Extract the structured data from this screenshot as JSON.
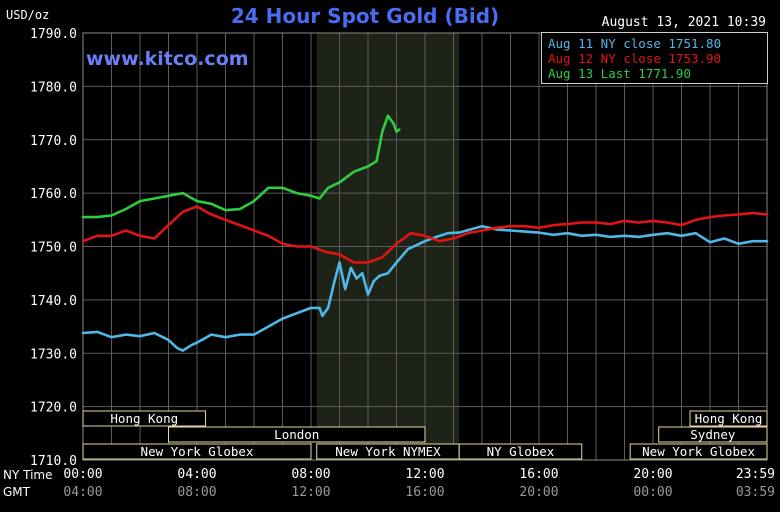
{
  "header": {
    "title": "24 Hour Spot Gold (Bid)",
    "website": "www.kitco.com",
    "datetime": "August 13, 2021 10:39",
    "unit": "USD/oz"
  },
  "colors": {
    "background": "#000000",
    "grid": "#5c5c5c",
    "title": "#4a6cf0",
    "site": "#6a7ff5",
    "highlight_band": "#1d2317",
    "session_border": "#e6d8a0",
    "aug11": "#4fb8e8",
    "aug12": "#e01414",
    "aug13": "#2ecc40"
  },
  "session_rows": {
    "ny_time": "NY Time",
    "gmt": "GMT"
  },
  "market_sessions": [
    {
      "label": "Hong Kong",
      "row": 0,
      "start": 0,
      "end": 4.3
    },
    {
      "label": "Hong Kong",
      "row": 0,
      "start": 21.3,
      "end": 24
    },
    {
      "label": "London",
      "row": 1,
      "start": 3,
      "end": 12
    },
    {
      "label": "Sydney",
      "row": 1,
      "start": 20.2,
      "end": 24
    },
    {
      "label": "New York Globex",
      "row": 2,
      "start": 0,
      "end": 8
    },
    {
      "label": "New York NYMEX",
      "row": 2,
      "start": 8.2,
      "end": 13.2
    },
    {
      "label": "NY Globex",
      "row": 2,
      "start": 13.2,
      "end": 17.5
    },
    {
      "label": "New York Globex",
      "row": 2,
      "start": 19.2,
      "end": 24
    }
  ],
  "chart_data": {
    "type": "line",
    "title": "24 Hour Spot Gold (Bid)",
    "ylabel": "USD/oz",
    "xlim": [
      0,
      24
    ],
    "ylim": [
      1710,
      1790
    ],
    "grid": true,
    "legend_position": "top-right",
    "highlight_range": [
      8.2,
      13.2
    ],
    "y_ticks": [
      "1710.0",
      "1720.0",
      "1730.0",
      "1740.0",
      "1750.0",
      "1760.0",
      "1770.0",
      "1780.0",
      "1790.0"
    ],
    "x_ticks_ny": [
      "00:00",
      "04:00",
      "08:00",
      "12:00",
      "16:00",
      "20:00",
      "23:59"
    ],
    "x_ticks_gmt": [
      "04:00",
      "08:00",
      "12:00",
      "16:00",
      "20:00",
      "00:00",
      "03:59"
    ],
    "legend": [
      "Aug 11 NY close 1751.80",
      "Aug 12 NY close 1753.90",
      "Aug 13 Last 1771.90"
    ],
    "series": [
      {
        "name": "Aug 11",
        "x": [
          0,
          0.5,
          1,
          1.5,
          2,
          2.5,
          3,
          3.3,
          3.5,
          3.8,
          4,
          4.5,
          5,
          5.5,
          6,
          6.5,
          7,
          7.5,
          8,
          8.3,
          8.4,
          8.6,
          8.8,
          9,
          9.2,
          9.4,
          9.6,
          9.8,
          10,
          10.2,
          10.4,
          10.7,
          11,
          11.4,
          11.8,
          12,
          12.4,
          12.8,
          13.2,
          13.6,
          14,
          14.5,
          15,
          15.5,
          16,
          16.5,
          17,
          17.5,
          18,
          18.5,
          19,
          19.5,
          20,
          20.5,
          21,
          21.5,
          22,
          22.5,
          23,
          23.5,
          24
        ],
        "y": [
          1733.8,
          1734,
          1733,
          1733.5,
          1733.2,
          1733.8,
          1732.5,
          1731,
          1730.5,
          1731.5,
          1732,
          1733.5,
          1733,
          1733.5,
          1733.5,
          1735,
          1736.5,
          1737.5,
          1738.5,
          1738.5,
          1737,
          1738.5,
          1743,
          1747,
          1742,
          1746,
          1744,
          1745,
          1741,
          1743.5,
          1744.5,
          1745,
          1747,
          1749.5,
          1750.5,
          1751,
          1751.8,
          1752.5,
          1752.6,
          1753.2,
          1753.8,
          1753.2,
          1753,
          1752.8,
          1752.6,
          1752.2,
          1752.5,
          1752,
          1752.2,
          1751.8,
          1752,
          1751.8,
          1752.2,
          1752.5,
          1752,
          1752.5,
          1750.8,
          1751.5,
          1750.5,
          1751,
          1751
        ]
      },
      {
        "name": "Aug 12",
        "x": [
          0,
          0.5,
          1,
          1.5,
          2,
          2.5,
          3,
          3.5,
          4,
          4.5,
          5,
          5.5,
          6,
          6.5,
          7,
          7.5,
          8,
          8.5,
          9,
          9.5,
          10,
          10.5,
          11,
          11.5,
          12,
          12.5,
          13,
          13.5,
          14,
          14.5,
          15,
          15.5,
          16,
          16.5,
          17,
          17.5,
          18,
          18.5,
          19,
          19.5,
          20,
          20.5,
          21,
          21.5,
          22,
          22.5,
          23,
          23.5,
          24
        ],
        "y": [
          1751,
          1752,
          1752,
          1753,
          1752,
          1751.5,
          1754,
          1756.5,
          1757.5,
          1756,
          1755,
          1754,
          1753,
          1752,
          1750.5,
          1750,
          1750,
          1749,
          1748.5,
          1747,
          1747,
          1748,
          1750.5,
          1752.5,
          1752,
          1751,
          1751.5,
          1752.5,
          1753,
          1753.5,
          1753.8,
          1753.8,
          1753.5,
          1754,
          1754.2,
          1754.5,
          1754.5,
          1754.2,
          1754.8,
          1754.5,
          1754.8,
          1754.5,
          1754,
          1755,
          1755.5,
          1755.8,
          1756,
          1756.3,
          1756
        ]
      },
      {
        "name": "Aug 13",
        "x": [
          0,
          0.5,
          1,
          1.5,
          2,
          2.5,
          3,
          3.5,
          4,
          4.5,
          5,
          5.5,
          6,
          6.5,
          7,
          7.5,
          8,
          8.3,
          8.6,
          9,
          9.5,
          10,
          10.3,
          10.5,
          10.7,
          10.9,
          11,
          11.1
        ],
        "y": [
          1755.5,
          1755.5,
          1755.8,
          1757,
          1758.5,
          1759,
          1759.5,
          1760,
          1758.5,
          1758,
          1756.8,
          1757,
          1758.5,
          1761,
          1761,
          1760,
          1759.5,
          1759,
          1761,
          1762,
          1764,
          1765,
          1766,
          1771.5,
          1774.5,
          1773,
          1771.5,
          1771.9
        ]
      }
    ]
  }
}
